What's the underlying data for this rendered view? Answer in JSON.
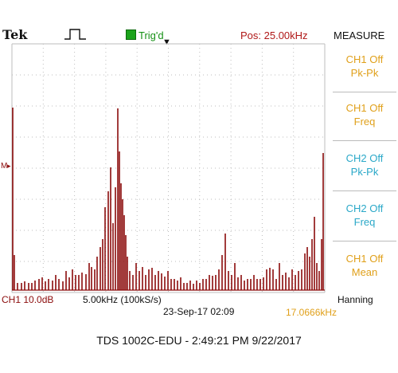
{
  "header": {
    "brand": "Tek",
    "trigger_status": "Trig'd",
    "position": "Pos: 25.00kHz",
    "menu_title": "MEASURE"
  },
  "menu": {
    "items": [
      {
        "line1": "CH1 Off",
        "line2": "Pk-Pk",
        "color": "#e0a01a"
      },
      {
        "line1": "CH1 Off",
        "line2": "Freq",
        "color": "#e0a01a"
      },
      {
        "line1": "CH2 Off",
        "line2": "Pk-Pk",
        "color": "#2aa8c8"
      },
      {
        "line1": "CH2 Off",
        "line2": "Freq",
        "color": "#2aa8c8"
      },
      {
        "line1": "CH1 Off",
        "line2": "Mean",
        "color": "#e0a01a"
      }
    ]
  },
  "markers": {
    "ch1_level": "M",
    "trigger_arrow": "▼"
  },
  "footer": {
    "channel_scale": "CH1 10.0dB",
    "timebase": "5.00kHz (100kS/s)",
    "date_time": "23-Sep-17 02:09",
    "window": "Hanning",
    "freq_readout": "17.0666kHz"
  },
  "caption": "TDS 1002C-EDU - 2:49:21 PM   9/22/2017",
  "colors": {
    "trace": "#8b0b0b",
    "grid": "#bdbdbd",
    "menu_orange": "#e0a01a",
    "menu_cyan": "#2aa8c8",
    "trig_green": "#1ba31b",
    "position_red": "#b01818"
  },
  "icons": {
    "trigger_pulse": "rising-pulse-icon",
    "trigger_state": "green-square-icon"
  }
}
